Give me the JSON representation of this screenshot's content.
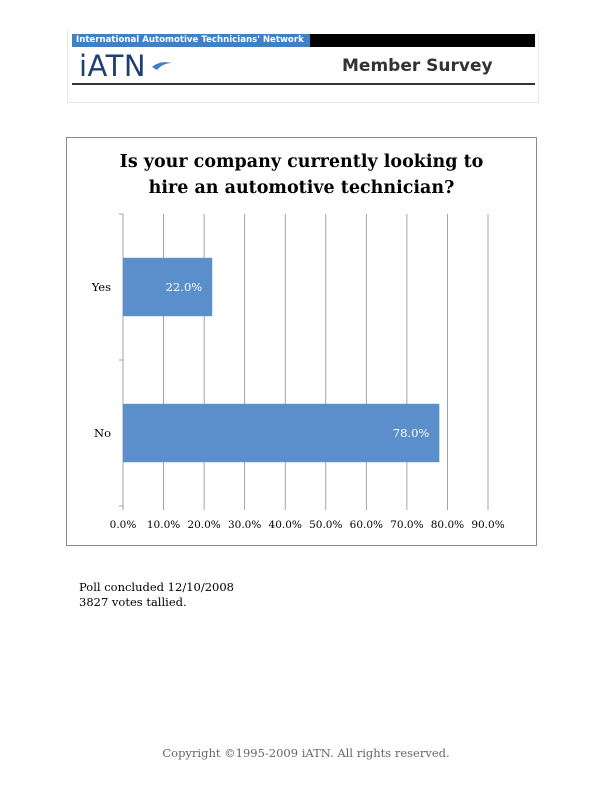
{
  "header": {
    "network_name": "International Automotive Technicians' Network",
    "logo_text": "iATN",
    "survey_title": "Member Survey",
    "colors": {
      "network_bar": "#3f81c3",
      "logo": "#1d3f72"
    }
  },
  "chart_data": {
    "type": "bar",
    "orientation": "horizontal",
    "title": [
      "Is your company currently looking to",
      "hire an automotive technician?"
    ],
    "categories": [
      "Yes",
      "No"
    ],
    "values": [
      22.0,
      78.0
    ],
    "value_labels": [
      "22.0%",
      "78.0%"
    ],
    "xlim": [
      0,
      90
    ],
    "xticks": [
      0,
      10,
      20,
      30,
      40,
      50,
      60,
      70,
      80,
      90
    ],
    "xtick_labels": [
      "0.0%",
      "10.0%",
      "20.0%",
      "30.0%",
      "40.0%",
      "50.0%",
      "60.0%",
      "70.0%",
      "80.0%",
      "90.0%"
    ],
    "grid": "vertical",
    "bar_color": "#5b8fcb"
  },
  "poll": {
    "concluded": "Poll concluded 12/10/2008",
    "votes": "3827 votes tallied."
  },
  "footer": {
    "copyright": "Copyright ©1995-2009 iATN. All rights reserved."
  }
}
